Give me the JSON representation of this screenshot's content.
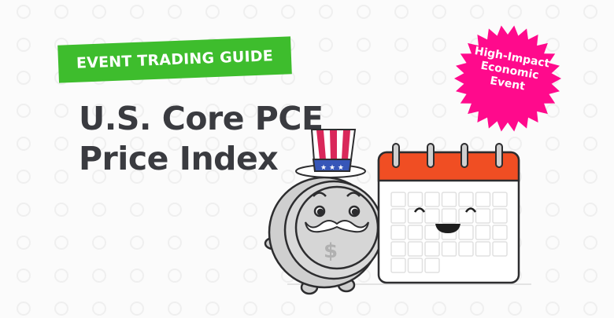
{
  "banner": {
    "label": "EVENT TRADING GUIDE",
    "color": "#3ebd2d"
  },
  "title": {
    "line1": "U.S. Core PCE",
    "line2": "Price Index"
  },
  "badge": {
    "line1": "High-Impact",
    "line2": "Economic",
    "line3": "Event",
    "color": "#ff0a8c"
  },
  "illustration": {
    "coin_symbol": "$",
    "calendar_header_color": "#f04e23"
  }
}
